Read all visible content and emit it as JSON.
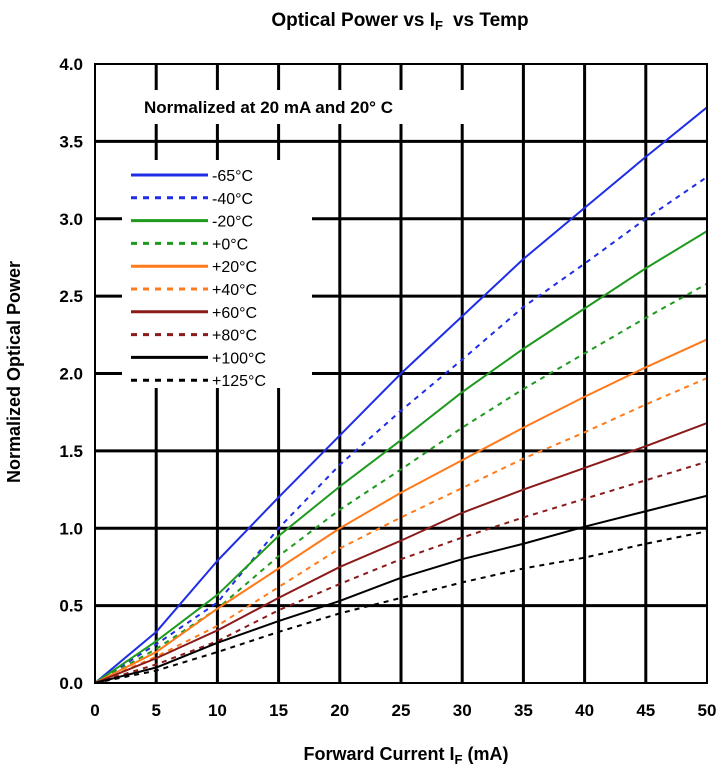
{
  "chart_data": {
    "type": "line",
    "title_main": "Optical Power vs I",
    "title_sub": "F",
    "title_tail": "vs Temp",
    "annotation": "Normalized at 20 mA and 20° C",
    "xlabel_main": "Forward Current I",
    "xlabel_sub": "F",
    "xlabel_tail": " (mA)",
    "ylabel": "Normalized Optical Power",
    "xlim": [
      0,
      50
    ],
    "ylim": [
      0,
      4.0
    ],
    "x_ticks": [
      "0",
      "5",
      "10",
      "15",
      "20",
      "25",
      "30",
      "35",
      "40",
      "45",
      "50"
    ],
    "y_ticks": [
      "0.0",
      "0.5",
      "1.0",
      "1.5",
      "2.0",
      "2.5",
      "3.0",
      "3.5",
      "4.0"
    ],
    "grid": true,
    "legend_position": "upper-left",
    "x": [
      0,
      5,
      10,
      15,
      20,
      25,
      30,
      35,
      40,
      45,
      50
    ],
    "series": [
      {
        "name": "-65°C",
        "color": "#1f2ee6",
        "dash": "solid",
        "values": [
          0,
          0.33,
          0.79,
          1.2,
          1.6,
          2.0,
          2.37,
          2.74,
          3.07,
          3.4,
          3.72
        ]
      },
      {
        "name": "-40°C",
        "color": "#1f2ee6",
        "dash": "dashed",
        "values": [
          0,
          0.25,
          0.52,
          1.0,
          1.41,
          1.76,
          2.09,
          2.43,
          2.71,
          3.0,
          3.27
        ]
      },
      {
        "name": "-20°C",
        "color": "#1e9a1e",
        "dash": "solid",
        "values": [
          0,
          0.27,
          0.57,
          0.95,
          1.27,
          1.57,
          1.88,
          2.16,
          2.42,
          2.68,
          2.92
        ]
      },
      {
        "name": "+0°C",
        "color": "#1e9a1e",
        "dash": "dashed",
        "values": [
          0,
          0.22,
          0.48,
          0.82,
          1.12,
          1.38,
          1.65,
          1.9,
          2.13,
          2.36,
          2.58
        ]
      },
      {
        "name": "+20°C",
        "color": "#ff7a1a",
        "dash": "solid",
        "values": [
          0,
          0.2,
          0.48,
          0.74,
          1.0,
          1.23,
          1.44,
          1.65,
          1.85,
          2.04,
          2.22
        ]
      },
      {
        "name": "+40°C",
        "color": "#ff7a1a",
        "dash": "dashed",
        "values": [
          0,
          0.17,
          0.37,
          0.62,
          0.87,
          1.07,
          1.26,
          1.45,
          1.62,
          1.8,
          1.97
        ]
      },
      {
        "name": "+60°C",
        "color": "#8b1a1a",
        "dash": "solid",
        "values": [
          0,
          0.16,
          0.34,
          0.55,
          0.75,
          0.92,
          1.1,
          1.25,
          1.39,
          1.53,
          1.68
        ]
      },
      {
        "name": "+80°C",
        "color": "#8b1a1a",
        "dash": "dashed",
        "values": [
          0,
          0.12,
          0.27,
          0.47,
          0.64,
          0.8,
          0.94,
          1.07,
          1.19,
          1.31,
          1.43
        ]
      },
      {
        "name": "+100°C",
        "color": "#000000",
        "dash": "solid",
        "values": [
          0,
          0.1,
          0.26,
          0.4,
          0.53,
          0.68,
          0.8,
          0.9,
          1.01,
          1.11,
          1.21
        ]
      },
      {
        "name": "+125°C",
        "color": "#000000",
        "dash": "dashed",
        "values": [
          0,
          0.08,
          0.2,
          0.33,
          0.45,
          0.55,
          0.65,
          0.74,
          0.81,
          0.9,
          0.98
        ]
      }
    ]
  }
}
